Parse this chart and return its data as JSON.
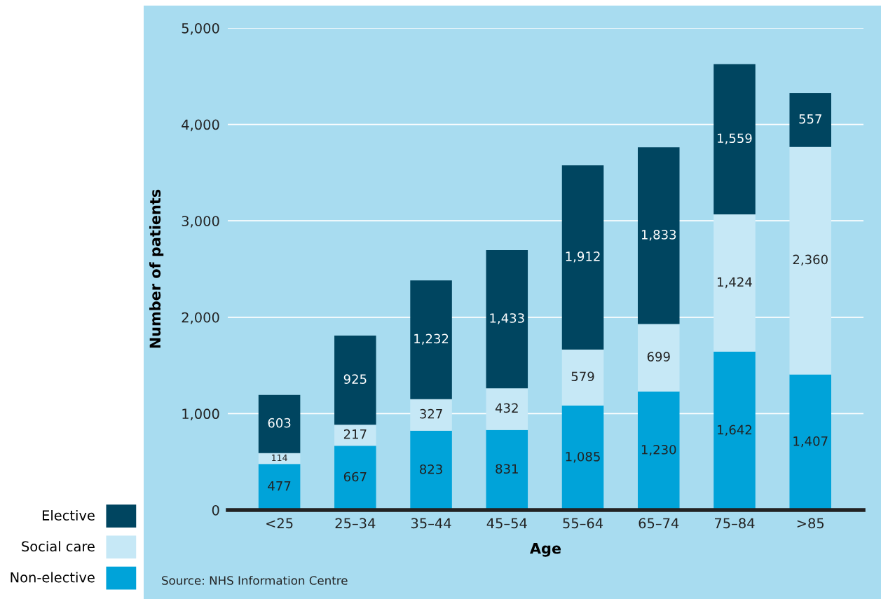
{
  "chart_data": {
    "type": "bar",
    "stacked": true,
    "xlabel": "Age",
    "ylabel": "Number of patients",
    "categories": [
      "<25",
      "25–34",
      "35–44",
      "45–54",
      "55–64",
      "65–74",
      "75–84",
      ">85"
    ],
    "series": [
      {
        "name": "Non-elective",
        "color": "#00a3d9",
        "values": [
          477,
          667,
          823,
          831,
          1085,
          1230,
          1642,
          1407
        ],
        "value_labels": [
          "477",
          "667",
          "823",
          "831",
          "1,085",
          "1,230",
          "1,642",
          "1,407"
        ]
      },
      {
        "name": "Social care",
        "color": "#c6e8f6",
        "values": [
          114,
          217,
          327,
          432,
          579,
          699,
          1424,
          2360
        ],
        "value_labels": [
          "114",
          "217",
          "327",
          "432",
          "579",
          "699",
          "1,424",
          "2,360"
        ]
      },
      {
        "name": "Elective",
        "color": "#004560",
        "values": [
          603,
          925,
          1232,
          1433,
          1912,
          1833,
          1559,
          557
        ],
        "value_labels": [
          "603",
          "925",
          "1,232",
          "1,433",
          "1,912",
          "1,833",
          "1,559",
          "557"
        ]
      }
    ],
    "ylim": [
      0,
      5000
    ],
    "yticks": [
      0,
      {
        "value": 1000,
        "label": "1,000"
      },
      {
        "value": 2000,
        "label": "2,000"
      },
      {
        "value": 3000,
        "label": "3,000"
      },
      {
        "value": 4000,
        "label": "4,000"
      },
      {
        "value": 5000,
        "label": "5,000"
      }
    ],
    "grid": "y",
    "legend": "bottom left",
    "annotations": [
      "Source: NHS Information Centre"
    ]
  }
}
